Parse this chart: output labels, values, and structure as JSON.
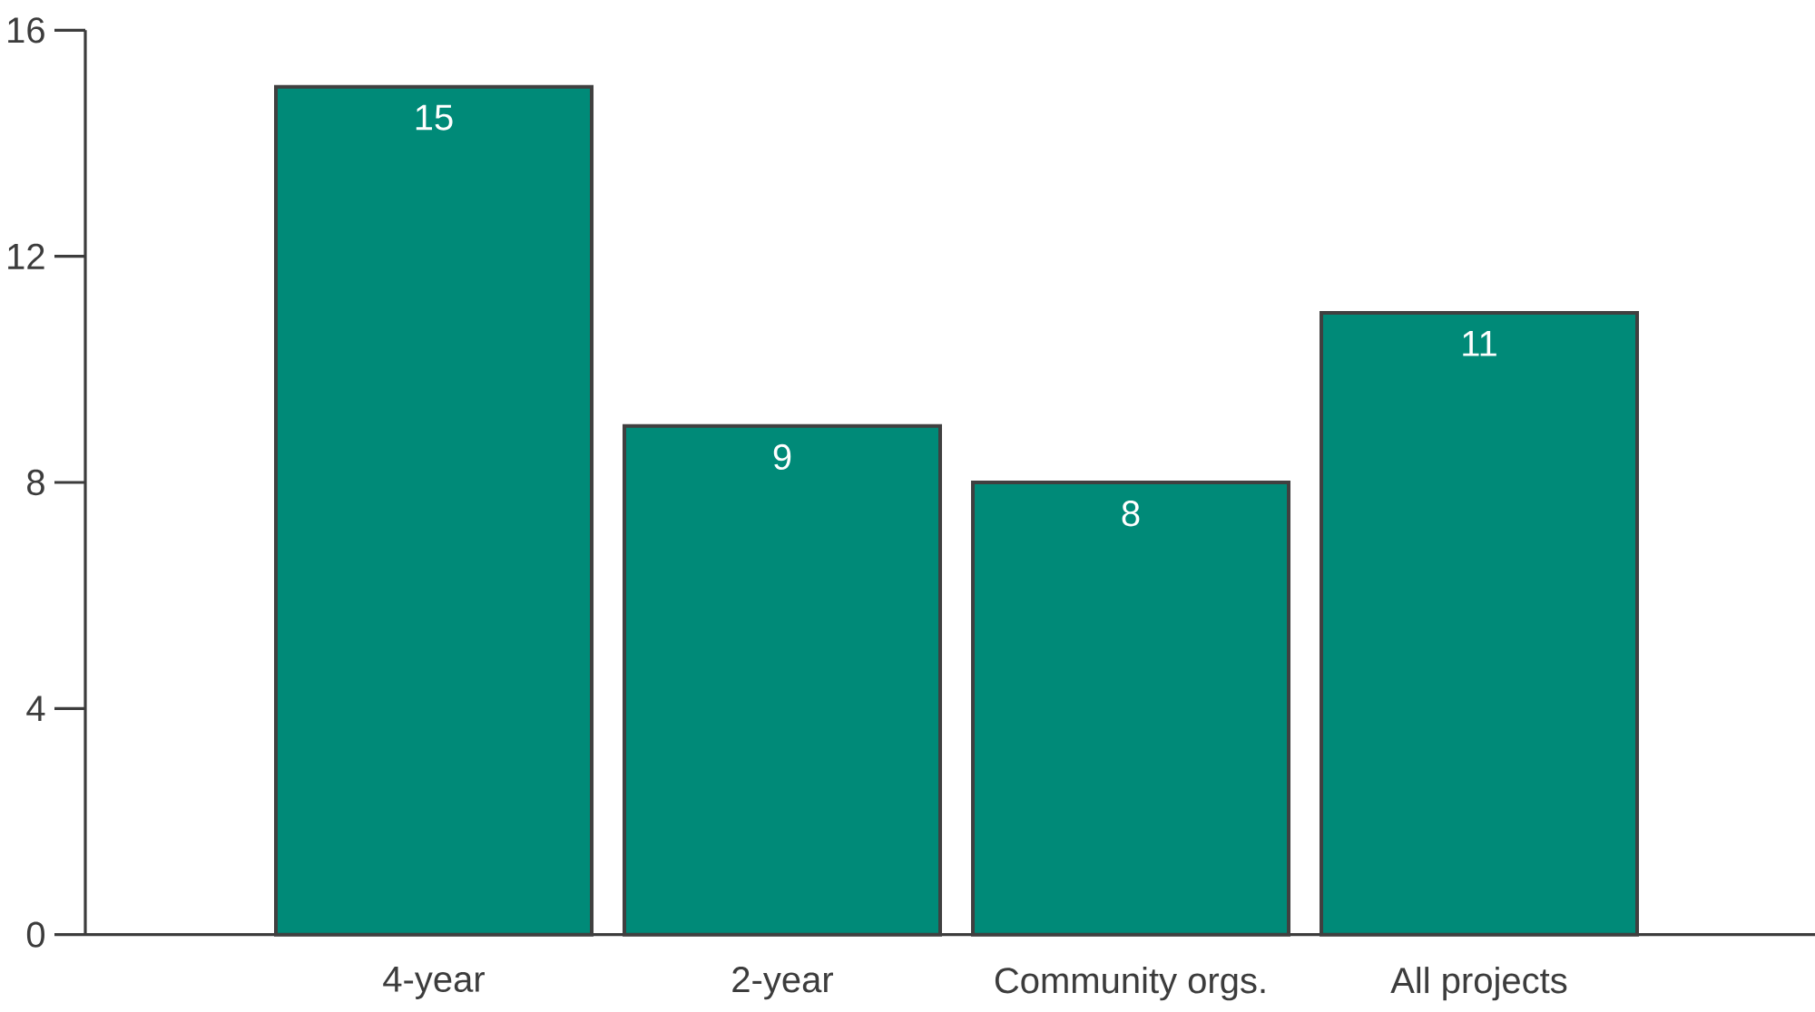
{
  "chart_data": {
    "type": "bar",
    "categories": [
      "4-year",
      "2-year",
      "Community orgs.",
      "All projects"
    ],
    "values": [
      15,
      9,
      8,
      11
    ],
    "color": "#008a78",
    "ylim": [
      0,
      16
    ],
    "yticks": [
      0,
      4,
      8,
      12,
      16
    ],
    "data_labels": true
  }
}
